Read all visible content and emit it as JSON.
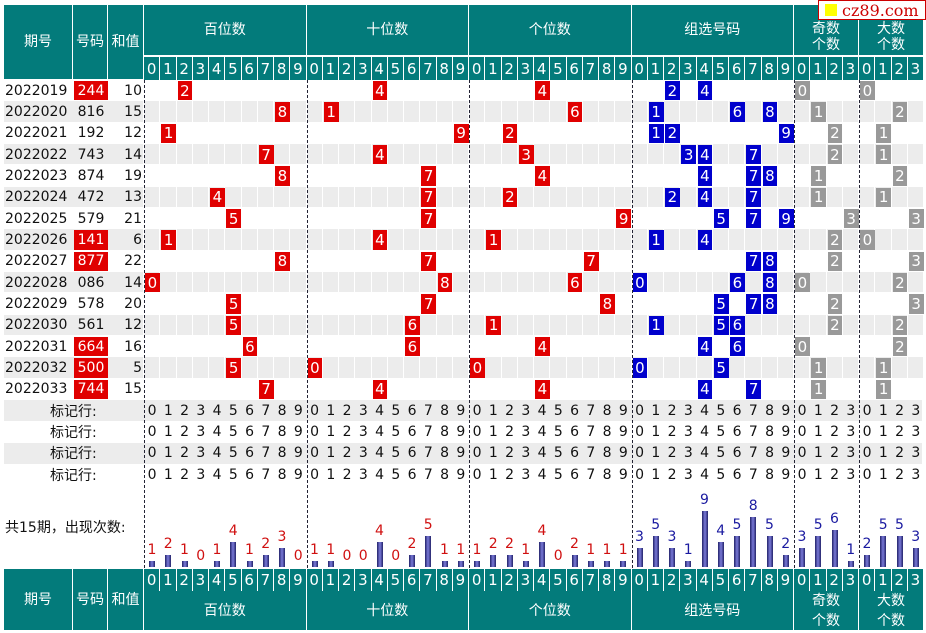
{
  "header": {
    "issue": "期号",
    "number": "号码",
    "sum": "和值",
    "groups": [
      "百位数",
      "十位数",
      "个位数",
      "组选号码",
      "奇数个数",
      "大数个数"
    ],
    "groups_bottom": [
      "百位数",
      "十位数",
      "个位数",
      "组选号码",
      "奇数\n个数",
      "大数\n个数"
    ]
  },
  "watermark": "cz89.com",
  "colors": {
    "teal": "#037b7b",
    "red": "#e00000",
    "blue": "#0000cc",
    "gray": "#999999",
    "rowalt": "#ececec"
  },
  "draws": [
    {
      "issue": "2022019",
      "number": "244",
      "sum": "10",
      "pair": true
    },
    {
      "issue": "2022020",
      "number": "816",
      "sum": "15",
      "pair": false
    },
    {
      "issue": "2022021",
      "number": "192",
      "sum": "12",
      "pair": false
    },
    {
      "issue": "2022022",
      "number": "743",
      "sum": "14",
      "pair": false
    },
    {
      "issue": "2022023",
      "number": "874",
      "sum": "19",
      "pair": false
    },
    {
      "issue": "2022024",
      "number": "472",
      "sum": "13",
      "pair": false
    },
    {
      "issue": "2022025",
      "number": "579",
      "sum": "21",
      "pair": false
    },
    {
      "issue": "2022026",
      "number": "141",
      "sum": "6",
      "pair": true
    },
    {
      "issue": "2022027",
      "number": "877",
      "sum": "22",
      "pair": true
    },
    {
      "issue": "2022028",
      "number": "086",
      "sum": "14",
      "pair": false
    },
    {
      "issue": "2022029",
      "number": "578",
      "sum": "20",
      "pair": false
    },
    {
      "issue": "2022030",
      "number": "561",
      "sum": "12",
      "pair": false
    },
    {
      "issue": "2022031",
      "number": "664",
      "sum": "16",
      "pair": true
    },
    {
      "issue": "2022032",
      "number": "500",
      "sum": "5",
      "pair": true
    },
    {
      "issue": "2022033",
      "number": "744",
      "sum": "15",
      "pair": true
    }
  ],
  "marker_label": "标记行:",
  "marker_rows": 4,
  "stats_label": "共15期，出现次数:",
  "stats": {
    "hundreds": [
      1,
      2,
      1,
      0,
      1,
      4,
      1,
      2,
      3,
      0
    ],
    "tens": [
      1,
      1,
      0,
      0,
      4,
      0,
      2,
      5,
      1,
      1
    ],
    "units": [
      1,
      2,
      2,
      1,
      4,
      0,
      2,
      1,
      1,
      1
    ],
    "group": [
      3,
      5,
      3,
      1,
      9,
      4,
      5,
      8,
      5,
      2
    ],
    "odd": [
      3,
      5,
      6,
      1
    ],
    "big": [
      2,
      5,
      5,
      3
    ]
  }
}
